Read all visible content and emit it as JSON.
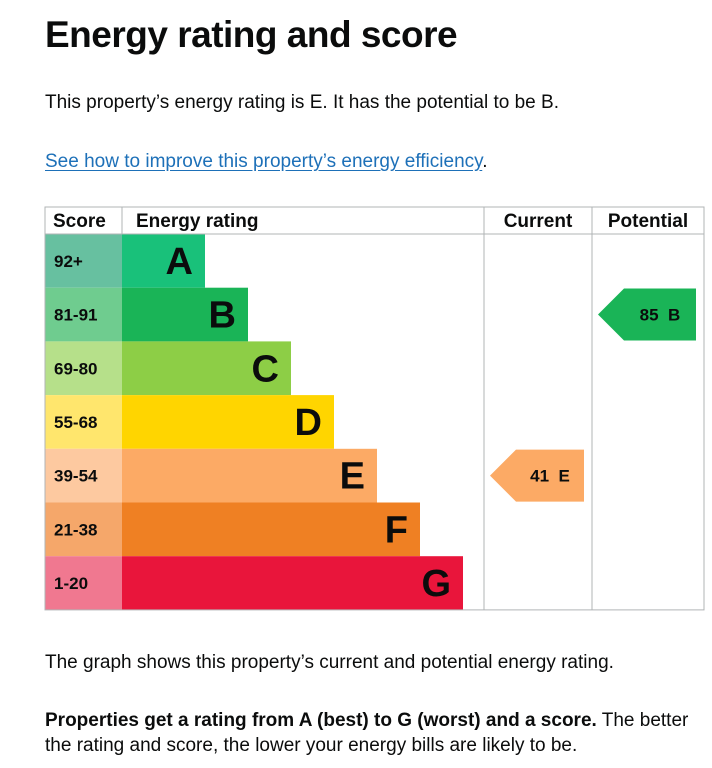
{
  "page": {
    "title": "Energy rating and score",
    "intro": "This property’s energy rating is E. It has the potential to be B.",
    "improve_link": "See how to improve this property’s energy efficiency",
    "improve_suffix": ".",
    "graph_caption": "The graph shows this property’s current and potential energy rating.",
    "ratings_bold": "Properties get a rating from A (best) to G (worst) and a score.",
    "ratings_rest": " The better the rating and score, the lower your energy bills are likely to be."
  },
  "colors": {
    "link": "#1d70b8",
    "text": "#0b0c0c",
    "grid": "#b1b4b6"
  },
  "chart_data": {
    "type": "table",
    "headers": {
      "score": "Score",
      "energy_rating": "Energy rating",
      "current": "Current",
      "potential": "Potential"
    },
    "bands": [
      {
        "score": "92+",
        "letter": "A",
        "color": "#008054",
        "score_color": "#67c0a0",
        "bar_color": "#19c17a"
      },
      {
        "score": "81-91",
        "letter": "B",
        "color": "#19b459",
        "score_color": "#6fcc8f",
        "bar_color": "#1ab457"
      },
      {
        "score": "69-80",
        "letter": "C",
        "color": "#8dce46",
        "score_color": "#b6e08a",
        "bar_color": "#8dce46"
      },
      {
        "score": "55-68",
        "letter": "D",
        "color": "#ffd500",
        "score_color": "#ffe66d",
        "bar_color": "#ffd500"
      },
      {
        "score": "39-54",
        "letter": "E",
        "color": "#fcaa65",
        "score_color": "#fdc9a0",
        "bar_color": "#fcaa65"
      },
      {
        "score": "21-38",
        "letter": "F",
        "color": "#ef8023",
        "score_color": "#f5a76a",
        "bar_color": "#ef8023"
      },
      {
        "score": "1-20",
        "letter": "G",
        "color": "#e9153b",
        "score_color": "#f07890",
        "bar_color": "#e9153b"
      }
    ],
    "current": {
      "score": 41,
      "letter": "E",
      "label": "41  E"
    },
    "potential": {
      "score": 85,
      "letter": "B",
      "label": "85  B"
    }
  }
}
